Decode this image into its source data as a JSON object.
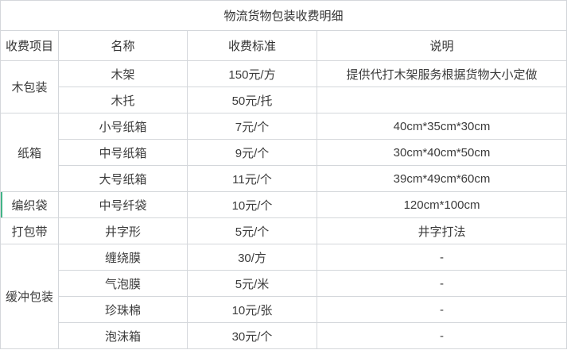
{
  "title": "物流货物包装收费明细",
  "columns": [
    "收费项目",
    "名称",
    "收费标准",
    "说明"
  ],
  "groups": [
    {
      "category": "木包装",
      "accent": false,
      "rows": [
        {
          "name": "木架",
          "price": "150元/方",
          "note": "提供代打木架服务根据货物大小定做"
        },
        {
          "name": "木托",
          "price": "50元/托",
          "note": ""
        }
      ]
    },
    {
      "category": "纸箱",
      "accent": false,
      "rows": [
        {
          "name": "小号纸箱",
          "price": "7元/个",
          "note": "40cm*35cm*30cm"
        },
        {
          "name": "中号纸箱",
          "price": "9元/个",
          "note": "30cm*40cm*50cm"
        },
        {
          "name": "大号纸箱",
          "price": "11元/个",
          "note": "39cm*49cm*60cm"
        }
      ]
    },
    {
      "category": "编织袋",
      "accent": true,
      "rows": [
        {
          "name": "中号纤袋",
          "price": "10元/个",
          "note": "120cm*100cm"
        }
      ]
    },
    {
      "category": "打包带",
      "accent": false,
      "rows": [
        {
          "name": "井字形",
          "price": "5元/个",
          "note": "井字打法"
        }
      ]
    },
    {
      "category": "缓冲包装",
      "accent": false,
      "rows": [
        {
          "name": "缠绕膜",
          "price": "30/方",
          "note": "-"
        },
        {
          "name": "气泡膜",
          "price": "5元/米",
          "note": "-"
        },
        {
          "name": "珍珠棉",
          "price": "10元/张",
          "note": "-"
        },
        {
          "name": "泡沫箱",
          "price": "30元/个",
          "note": "-"
        }
      ]
    }
  ],
  "colors": {
    "accent_green": "#42b487",
    "border": "#d4d7db",
    "text": "#3b3b3b",
    "background": "#ffffff"
  }
}
